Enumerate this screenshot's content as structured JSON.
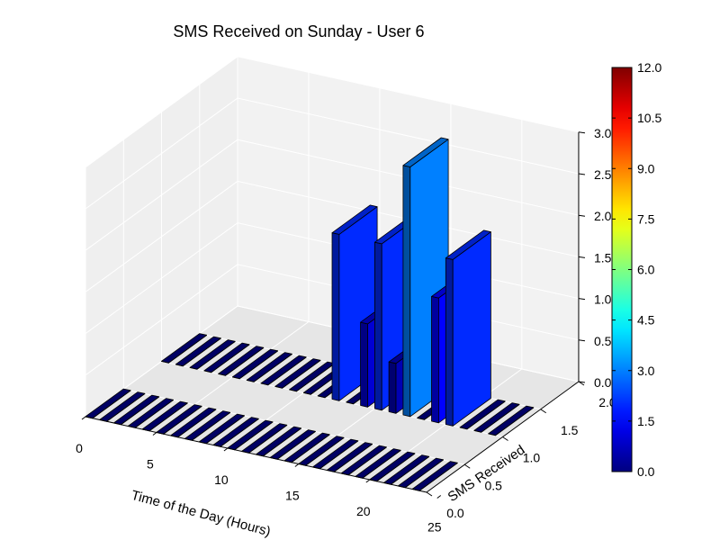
{
  "chart_data": {
    "type": "bar3d",
    "title": "SMS Received on Sunday - User 6",
    "xlabel": "Time of the Day (Hours)",
    "ylabel": "SMS Received",
    "zlabel": "",
    "x_ticks": [
      "0",
      "5",
      "10",
      "15",
      "20",
      "25"
    ],
    "y_ticks": [
      "0.0",
      "0.5",
      "1.0",
      "1.5",
      "2.0"
    ],
    "z_ticks": [
      "0.0",
      "0.5",
      "1.0",
      "1.5",
      "2.0",
      "2.5",
      "3.0"
    ],
    "colorbar": {
      "ticks": [
        "0.0",
        "1.5",
        "3.0",
        "4.5",
        "6.0",
        "7.5",
        "9.0",
        "10.5",
        "12.0"
      ],
      "min": 0,
      "max": 12,
      "colormap": "jet"
    },
    "xlim": [
      0,
      24
    ],
    "ylim": [
      0,
      2
    ],
    "zlim": [
      0,
      3
    ],
    "grid": true,
    "bars": [
      {
        "hour": 12,
        "sms_received": 1,
        "value": 2
      },
      {
        "hour": 14,
        "sms_received": 1,
        "value": 1
      },
      {
        "hour": 15,
        "sms_received": 1,
        "value": 2
      },
      {
        "hour": 16,
        "sms_received": 1,
        "value": 0.6
      },
      {
        "hour": 17,
        "sms_received": 1,
        "value": 3
      },
      {
        "hour": 19,
        "sms_received": 1,
        "value": 1.5
      },
      {
        "hour": 20,
        "sms_received": 1,
        "value": 2
      }
    ]
  }
}
